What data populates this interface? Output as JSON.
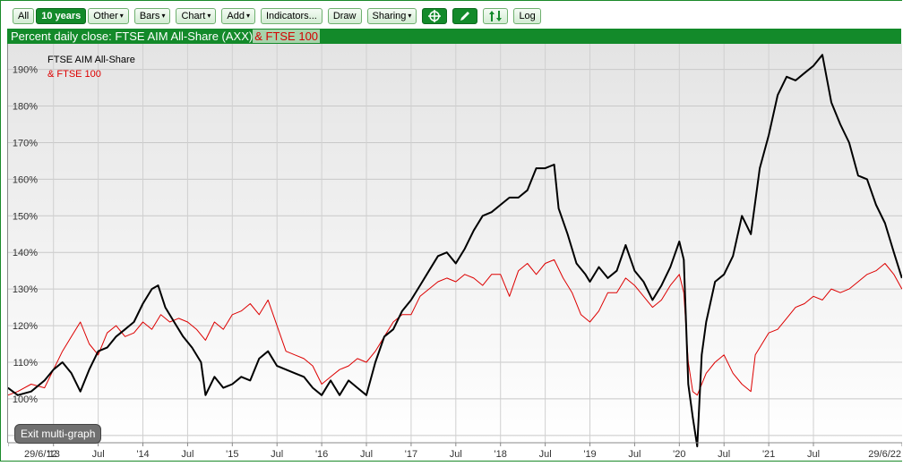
{
  "toolbar": {
    "all": "All",
    "period": "10 years",
    "other": "Other",
    "bars": "Bars",
    "chart": "Chart",
    "add": "Add",
    "indicators": "Indicators...",
    "draw": "Draw",
    "sharing": "Sharing",
    "log": "Log",
    "caret": "▾"
  },
  "header": {
    "title": "Percent daily close: FTSE AIM All-Share (AXX)",
    "compare": "& FTSE 100"
  },
  "exit_label": "Exit multi-graph",
  "colors": {
    "accent": "#138a2a",
    "aim": "#000000",
    "ftse": "#dd0000"
  },
  "icons": {
    "crosshair": "crosshair-icon",
    "pencil": "pencil-icon",
    "arrows": "up-down-arrows-icon"
  },
  "chart_data": {
    "type": "line",
    "xlabel": "",
    "ylabel": "",
    "ylim": [
      88,
      197
    ],
    "xlim": [
      2012.4918,
      2022.4918
    ],
    "yticks": [
      "90%",
      "100%",
      "110%",
      "120%",
      "130%",
      "140%",
      "150%",
      "160%",
      "170%",
      "180%",
      "190%"
    ],
    "ytick_values": [
      90,
      100,
      110,
      120,
      130,
      140,
      150,
      160,
      170,
      180,
      190
    ],
    "xticks": [
      {
        "label": "29/6/12",
        "x": 2012.4918
      },
      {
        "label": "'13",
        "x": 2013.0
      },
      {
        "label": "Jul",
        "x": 2013.5
      },
      {
        "label": "'14",
        "x": 2014.0
      },
      {
        "label": "Jul",
        "x": 2014.5
      },
      {
        "label": "'15",
        "x": 2015.0
      },
      {
        "label": "Jul",
        "x": 2015.5
      },
      {
        "label": "'16",
        "x": 2016.0
      },
      {
        "label": "Jul",
        "x": 2016.5
      },
      {
        "label": "'17",
        "x": 2017.0
      },
      {
        "label": "Jul",
        "x": 2017.5
      },
      {
        "label": "'18",
        "x": 2018.0
      },
      {
        "label": "Jul",
        "x": 2018.5
      },
      {
        "label": "'19",
        "x": 2019.0
      },
      {
        "label": "Jul",
        "x": 2019.5
      },
      {
        "label": "'20",
        "x": 2020.0
      },
      {
        "label": "Jul",
        "x": 2020.5
      },
      {
        "label": "'21",
        "x": 2021.0
      },
      {
        "label": "Jul",
        "x": 2021.5
      },
      {
        "label": "29/6/22",
        "x": 2022.4918
      }
    ],
    "legend": [
      "FTSE AIM All-Share",
      "& FTSE 100"
    ],
    "legend_position": "top-left",
    "grid": true,
    "series": [
      {
        "name": "FTSE AIM All-Share",
        "color": "#000000",
        "x": [
          2012.49,
          2012.6,
          2012.75,
          2012.9,
          2013.0,
          2013.1,
          2013.2,
          2013.3,
          2013.4,
          2013.5,
          2013.6,
          2013.7,
          2013.8,
          2013.9,
          2014.0,
          2014.1,
          2014.17,
          2014.25,
          2014.35,
          2014.45,
          2014.55,
          2014.65,
          2014.7,
          2014.8,
          2014.9,
          2015.0,
          2015.1,
          2015.2,
          2015.3,
          2015.4,
          2015.5,
          2015.6,
          2015.7,
          2015.8,
          2015.9,
          2016.0,
          2016.1,
          2016.2,
          2016.3,
          2016.4,
          2016.5,
          2016.6,
          2016.7,
          2016.8,
          2016.9,
          2017.0,
          2017.1,
          2017.2,
          2017.3,
          2017.4,
          2017.5,
          2017.6,
          2017.7,
          2017.8,
          2017.9,
          2018.0,
          2018.1,
          2018.2,
          2018.3,
          2018.4,
          2018.5,
          2018.6,
          2018.65,
          2018.75,
          2018.85,
          2018.95,
          2019.0,
          2019.1,
          2019.2,
          2019.3,
          2019.4,
          2019.5,
          2019.6,
          2019.7,
          2019.8,
          2019.9,
          2020.0,
          2020.05,
          2020.1,
          2020.15,
          2020.2,
          2020.22,
          2020.25,
          2020.3,
          2020.4,
          2020.5,
          2020.6,
          2020.7,
          2020.8,
          2020.9,
          2021.0,
          2021.1,
          2021.2,
          2021.3,
          2021.4,
          2021.5,
          2021.6,
          2021.7,
          2021.8,
          2021.9,
          2022.0,
          2022.1,
          2022.2,
          2022.3,
          2022.4,
          2022.49
        ],
        "values": [
          103,
          101,
          102,
          105,
          108,
          110,
          107,
          102,
          108,
          113,
          114,
          117,
          119,
          121,
          126,
          130,
          131,
          125,
          121,
          117,
          114,
          110,
          101,
          106,
          103,
          104,
          106,
          105,
          111,
          113,
          109,
          108,
          107,
          106,
          103,
          101,
          105,
          101,
          105,
          103,
          101,
          110,
          117,
          119,
          124,
          127,
          131,
          135,
          139,
          140,
          137,
          141,
          146,
          150,
          151,
          153,
          155,
          155,
          157,
          163,
          163,
          164,
          152,
          145,
          137,
          134,
          132,
          136,
          133,
          135,
          142,
          135,
          132,
          127,
          131,
          136,
          143,
          138,
          104,
          95,
          87,
          97,
          112,
          121,
          132,
          134,
          139,
          150,
          145,
          163,
          172,
          183,
          188,
          187,
          189,
          191,
          194,
          181,
          175,
          170,
          161,
          160,
          153,
          148,
          140,
          133
        ]
      },
      {
        "name": "& FTSE 100",
        "color": "#dd0000",
        "x": [
          2012.49,
          2012.6,
          2012.75,
          2012.9,
          2013.0,
          2013.1,
          2013.2,
          2013.3,
          2013.4,
          2013.5,
          2013.6,
          2013.7,
          2013.8,
          2013.9,
          2014.0,
          2014.1,
          2014.2,
          2014.3,
          2014.4,
          2014.5,
          2014.6,
          2014.7,
          2014.8,
          2014.9,
          2015.0,
          2015.1,
          2015.2,
          2015.3,
          2015.4,
          2015.5,
          2015.6,
          2015.7,
          2015.8,
          2015.9,
          2016.0,
          2016.1,
          2016.2,
          2016.3,
          2016.4,
          2016.5,
          2016.6,
          2016.7,
          2016.8,
          2016.9,
          2017.0,
          2017.1,
          2017.2,
          2017.3,
          2017.4,
          2017.5,
          2017.6,
          2017.7,
          2017.8,
          2017.9,
          2018.0,
          2018.1,
          2018.2,
          2018.3,
          2018.4,
          2018.5,
          2018.6,
          2018.7,
          2018.8,
          2018.9,
          2019.0,
          2019.1,
          2019.2,
          2019.3,
          2019.4,
          2019.5,
          2019.6,
          2019.7,
          2019.8,
          2019.9,
          2020.0,
          2020.05,
          2020.1,
          2020.15,
          2020.2,
          2020.3,
          2020.4,
          2020.5,
          2020.6,
          2020.7,
          2020.8,
          2020.85,
          2020.9,
          2021.0,
          2021.1,
          2021.2,
          2021.3,
          2021.4,
          2021.5,
          2021.6,
          2021.7,
          2021.8,
          2021.9,
          2022.0,
          2022.1,
          2022.2,
          2022.3,
          2022.4,
          2022.49
        ],
        "values": [
          101,
          102,
          104,
          103,
          108,
          113,
          117,
          121,
          115,
          112,
          118,
          120,
          117,
          118,
          121,
          119,
          123,
          121,
          122,
          121,
          119,
          116,
          121,
          119,
          123,
          124,
          126,
          123,
          127,
          120,
          113,
          112,
          111,
          109,
          104,
          106,
          108,
          109,
          111,
          110,
          113,
          117,
          121,
          123,
          123,
          128,
          130,
          132,
          133,
          132,
          134,
          133,
          131,
          134,
          134,
          128,
          135,
          137,
          134,
          137,
          138,
          133,
          129,
          123,
          121,
          124,
          129,
          129,
          133,
          131,
          128,
          125,
          127,
          131,
          134,
          129,
          110,
          102,
          101,
          107,
          110,
          112,
          107,
          104,
          102,
          112,
          114,
          118,
          119,
          122,
          125,
          126,
          128,
          127,
          130,
          129,
          130,
          132,
          134,
          135,
          137,
          134,
          130
        ]
      }
    ]
  }
}
